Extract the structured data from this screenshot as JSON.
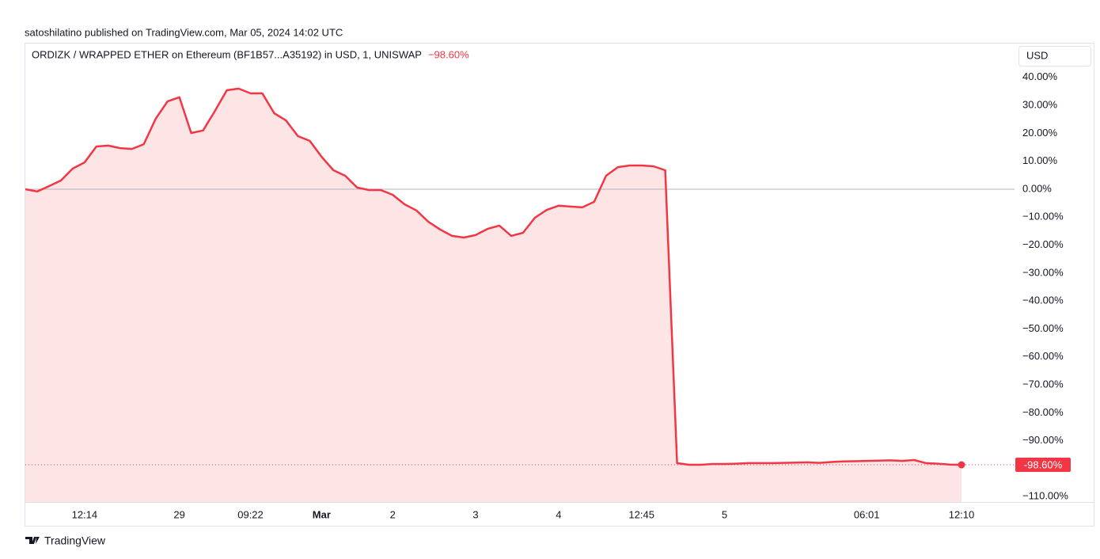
{
  "chart_data": {
    "type": "area",
    "publisher": "satoshilatino published on TradingView.com, Mar 05, 2024 14:02 UTC",
    "title": "ORDIZK / WRAPPED ETHER on Ethereum (BF1B57...A35192) in USD, 1, UNISWAP",
    "change": "−98.60%",
    "currency": "USD",
    "brand": "TradingView",
    "last_label": "-98.60%",
    "categories": [
      null,
      null,
      null,
      null,
      null,
      "12:14",
      null,
      null,
      null,
      null,
      null,
      null,
      null,
      "29",
      null,
      null,
      null,
      null,
      null,
      "09:22",
      null,
      null,
      null,
      null,
      null,
      "Mar",
      null,
      null,
      null,
      null,
      null,
      "2",
      null,
      null,
      null,
      null,
      null,
      null,
      "3",
      null,
      null,
      null,
      null,
      null,
      null,
      "4",
      null,
      null,
      null,
      null,
      null,
      null,
      "12:45",
      null,
      null,
      null,
      null,
      null,
      null,
      "5",
      null,
      null,
      null,
      null,
      null,
      null,
      null,
      null,
      null,
      null,
      null,
      "06:01",
      null,
      null,
      null,
      null,
      null,
      null,
      null,
      "12:10"
    ],
    "series": [
      {
        "name": "ORDIZK / WRAPPED ETHER",
        "color": "#f23645",
        "fill": "#fde4e5",
        "values": [
          0,
          -0.8,
          1.1,
          3.1,
          7.4,
          9.6,
          15.3,
          15.6,
          14.7,
          14.4,
          16.1,
          25.2,
          31.4,
          32.9,
          20.1,
          21,
          28,
          35.4,
          36,
          34.3,
          34.3,
          27.2,
          24.6,
          19,
          17.3,
          11.6,
          6.8,
          4.8,
          0.6,
          -0.3,
          -0.3,
          -2,
          -5.4,
          -7.6,
          -11.6,
          -14.4,
          -16.7,
          -17.3,
          -16.4,
          -14.2,
          -13,
          -16.7,
          -15.6,
          -10.2,
          -7.4,
          -5.9,
          -6.2,
          -6.5,
          -4.5,
          4.8,
          7.9,
          8.5,
          8.5,
          8.2,
          6.8,
          -98,
          -98.6,
          -98.6,
          -98.3,
          -98.3,
          -98.2,
          -98,
          -98,
          -98,
          -97.9,
          -97.8,
          -97.7,
          -97.9,
          -97.6,
          -97.4,
          -97.3,
          -97.2,
          -97.1,
          -97,
          -97.2,
          -96.9,
          -98,
          -98.2,
          -98.5,
          -98.6
        ]
      }
    ],
    "ylim": [
      -111.9,
      52.4
    ],
    "yticks": [
      {
        "value": 40,
        "label": "40.00%"
      },
      {
        "value": 30,
        "label": "30.00%"
      },
      {
        "value": 20,
        "label": "20.00%"
      },
      {
        "value": 10,
        "label": "10.00%"
      },
      {
        "value": 0,
        "label": "0.00%"
      },
      {
        "value": -10,
        "label": "−10.00%"
      },
      {
        "value": -20,
        "label": "−20.00%"
      },
      {
        "value": -30,
        "label": "−30.00%"
      },
      {
        "value": -40,
        "label": "−40.00%"
      },
      {
        "value": -50,
        "label": "−50.00%"
      },
      {
        "value": -60,
        "label": "−60.00%"
      },
      {
        "value": -70,
        "label": "−70.00%"
      },
      {
        "value": -80,
        "label": "−80.00%"
      },
      {
        "value": -90,
        "label": "−90.00%"
      },
      {
        "value": -110,
        "label": "−110.00%"
      }
    ],
    "baseline": 0
  }
}
